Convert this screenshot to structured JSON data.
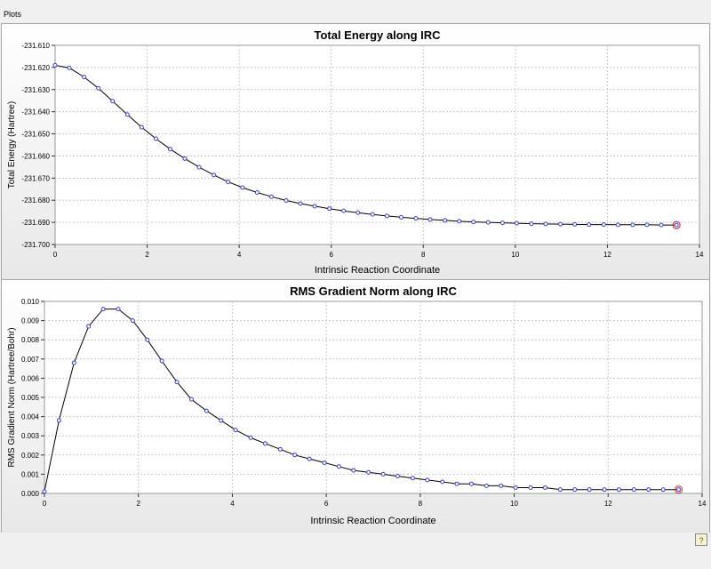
{
  "window": {
    "title": "Plots"
  },
  "icons": {
    "help": "help-icon"
  },
  "colors": {
    "line": "#000000",
    "marker": "#3a3ae0",
    "grid": "#c8c8c8",
    "last_marker": "#d04040"
  },
  "chart_data": [
    {
      "type": "line",
      "title": "Total Energy along IRC",
      "xlabel": "Intrinsic Reaction Coordinate",
      "ylabel": "Total Energy (Hartree)",
      "xlim": [
        0,
        14
      ],
      "ylim": [
        -231.7,
        -231.61
      ],
      "xticks": [
        "0",
        "2",
        "4",
        "6",
        "8",
        "10",
        "12",
        "14"
      ],
      "yticks": [
        "-231.610",
        "-231.620",
        "-231.630",
        "-231.640",
        "-231.650",
        "-231.660",
        "-231.670",
        "-231.680",
        "-231.690",
        "-231.700"
      ],
      "grid": true,
      "series": [
        {
          "x": [
            0,
            0.31,
            0.63,
            0.94,
            1.25,
            1.57,
            1.88,
            2.19,
            2.5,
            2.82,
            3.13,
            3.45,
            3.76,
            4.07,
            4.39,
            4.7,
            5.02,
            5.33,
            5.64,
            5.96,
            6.27,
            6.58,
            6.9,
            7.21,
            7.52,
            7.84,
            8.15,
            8.47,
            8.78,
            9.09,
            9.41,
            9.72,
            10.03,
            10.35,
            10.66,
            10.98,
            11.29,
            11.6,
            11.92,
            12.23,
            12.55,
            12.86,
            13.17,
            13.5
          ],
          "y": [
            -231.619,
            -231.6202,
            -231.6243,
            -231.6294,
            -231.6352,
            -231.6413,
            -231.647,
            -231.6522,
            -231.6569,
            -231.6612,
            -231.6651,
            -231.6686,
            -231.6717,
            -231.6743,
            -231.6765,
            -231.6784,
            -231.6801,
            -231.6815,
            -231.6827,
            -231.6838,
            -231.6848,
            -231.6856,
            -231.6864,
            -231.6871,
            -231.6877,
            -231.6882,
            -231.6887,
            -231.6891,
            -231.6895,
            -231.6898,
            -231.69,
            -231.6902,
            -231.6904,
            -231.6906,
            -231.6907,
            -231.6908,
            -231.6909,
            -231.691,
            -231.691,
            -231.6911,
            -231.6911,
            -231.6911,
            -231.6912,
            -231.6912
          ]
        }
      ]
    },
    {
      "type": "line",
      "title": "RMS Gradient Norm along IRC",
      "xlabel": "Intrinsic Reaction Coordinate",
      "ylabel": "RMS Gradient Norm (Hartree/Bohr)",
      "xlim": [
        0,
        14
      ],
      "ylim": [
        0,
        0.01
      ],
      "xticks": [
        "0",
        "2",
        "4",
        "6",
        "8",
        "10",
        "12",
        "14"
      ],
      "yticks": [
        "0.010",
        "0.009",
        "0.008",
        "0.007",
        "0.006",
        "0.005",
        "0.004",
        "0.003",
        "0.002",
        "0.001",
        "0.000"
      ],
      "grid": true,
      "series": [
        {
          "x": [
            0,
            0.31,
            0.63,
            0.94,
            1.25,
            1.57,
            1.88,
            2.19,
            2.5,
            2.82,
            3.13,
            3.45,
            3.76,
            4.07,
            4.39,
            4.7,
            5.02,
            5.33,
            5.64,
            5.96,
            6.27,
            6.58,
            6.9,
            7.21,
            7.52,
            7.84,
            8.15,
            8.47,
            8.78,
            9.09,
            9.41,
            9.72,
            10.03,
            10.35,
            10.66,
            10.98,
            11.29,
            11.6,
            11.92,
            12.23,
            12.55,
            12.86,
            13.17,
            13.5
          ],
          "y": [
            0.0001,
            0.0038,
            0.0068,
            0.0087,
            0.0096,
            0.0096,
            0.009,
            0.008,
            0.0069,
            0.0058,
            0.0049,
            0.0043,
            0.0038,
            0.0033,
            0.0029,
            0.0026,
            0.0023,
            0.002,
            0.0018,
            0.0016,
            0.0014,
            0.0012,
            0.0011,
            0.001,
            0.0009,
            0.0008,
            0.0007,
            0.0006,
            0.0005,
            0.0005,
            0.0004,
            0.0004,
            0.0003,
            0.0003,
            0.0003,
            0.0002,
            0.0002,
            0.0002,
            0.0002,
            0.0002,
            0.0002,
            0.0002,
            0.0002,
            0.0002
          ]
        }
      ]
    }
  ]
}
